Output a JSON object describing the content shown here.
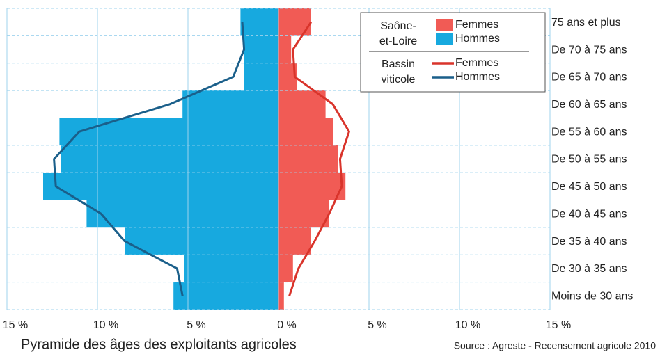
{
  "chart_data": {
    "type": "pyramid",
    "title": "Pyramide des âges des exploitants agricoles",
    "source": "Source : Agreste - Recensement agricole 2010",
    "categories": [
      "Moins de 30 ans",
      "De 30 à 35 ans",
      "De 35 à 40 ans",
      "De 40 à 45 ans",
      "De 45 à 50 ans",
      "De 50 à 55 ans",
      "De 55 à 60 ans",
      "De 60 à 65 ans",
      "De 65 à 70 ans",
      "De 70 à 75 ans",
      "75 ans et plus"
    ],
    "xlim": [
      -15,
      15
    ],
    "xticks": [
      {
        "value": -15,
        "label": "15 %"
      },
      {
        "value": -10,
        "label": "10 %"
      },
      {
        "value": -5,
        "label": "5 %"
      },
      {
        "value": 0,
        "label": "0 %"
      },
      {
        "value": 5,
        "label": "5 %"
      },
      {
        "value": 10,
        "label": "10 %"
      },
      {
        "value": 15,
        "label": "15 %"
      }
    ],
    "grid": true,
    "legend_groups": [
      {
        "title": [
          "Saône-",
          "et-Loire"
        ]
      },
      {
        "title": [
          "Bassin",
          "viticole"
        ]
      }
    ],
    "series": [
      {
        "name": "Femmes",
        "type": "bar",
        "color": "#f15b55",
        "values": [
          0.3,
          0.8,
          1.8,
          2.8,
          3.7,
          3.3,
          3.0,
          2.6,
          1.0,
          0.7,
          1.8
        ]
      },
      {
        "name": "Hommes",
        "type": "bar",
        "color": "#17a9df",
        "values": [
          -5.8,
          -5.2,
          -8.5,
          -10.6,
          -13.0,
          -12.0,
          -12.1,
          -5.3,
          -1.9,
          -1.9,
          -2.1
        ]
      },
      {
        "name": "Femmes",
        "type": "line",
        "color": "#d9342b",
        "values": [
          0.6,
          1.1,
          2.0,
          2.8,
          3.5,
          3.4,
          3.9,
          3.0,
          0.9,
          0.8,
          1.8
        ]
      },
      {
        "name": "Hommes",
        "type": "line",
        "color": "#1a5f8a",
        "values": [
          -5.3,
          -5.6,
          -8.5,
          -9.8,
          -12.3,
          -12.4,
          -11.0,
          -6.0,
          -2.5,
          -1.9,
          -2.0
        ]
      }
    ]
  }
}
